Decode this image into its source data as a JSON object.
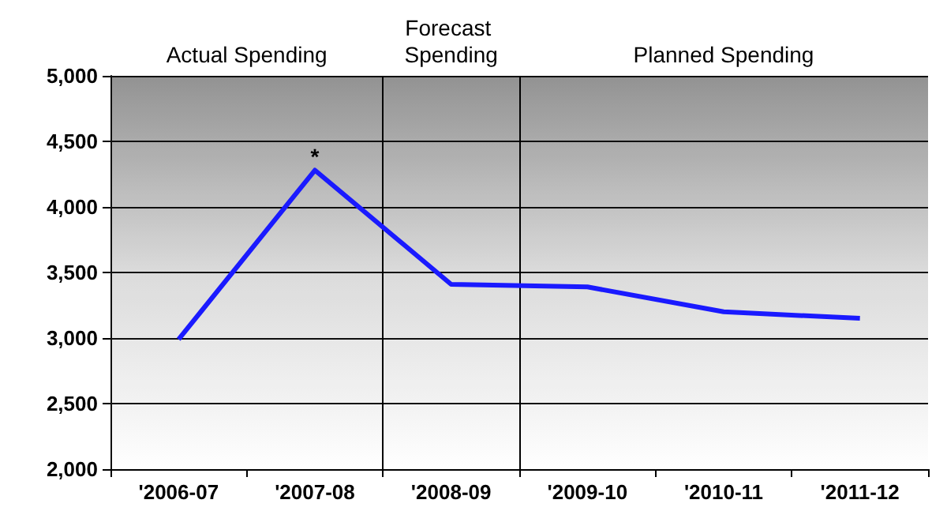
{
  "chart_data": {
    "type": "line",
    "categories": [
      "'2006-07",
      "'2007-08",
      "'2008-09",
      "'2009-10",
      "'2010-11",
      "'2011-12"
    ],
    "series": [
      {
        "color": "#1a1aff",
        "values": [
          2990,
          4280,
          3410,
          3390,
          3200,
          3150
        ]
      }
    ],
    "ylim": [
      2000,
      5000
    ],
    "yticks": [
      {
        "value": 2000,
        "label": "2,000"
      },
      {
        "value": 2500,
        "label": "2,500"
      },
      {
        "value": 3000,
        "label": "3,000"
      },
      {
        "value": 3500,
        "label": "3,500"
      },
      {
        "value": 4000,
        "label": "4,000"
      },
      {
        "value": 4500,
        "label": "4,500"
      },
      {
        "value": 5000,
        "label": "5,000"
      }
    ],
    "grid": "y",
    "marker": "none",
    "line_style": "solid",
    "bands": [
      {
        "axis": "x",
        "from": "'2006-07",
        "to": "'2007-08",
        "label": "Actual Spending"
      },
      {
        "axis": "x",
        "from": "'2008-09",
        "to": "'2008-09",
        "label": "Forecast Spending"
      },
      {
        "axis": "x",
        "from": "'2009-10",
        "to": "'2011-12",
        "label": "Planned Spending"
      }
    ],
    "annotations": [
      {
        "text": "*",
        "x": "'2007-08",
        "y": 4280
      }
    ]
  }
}
